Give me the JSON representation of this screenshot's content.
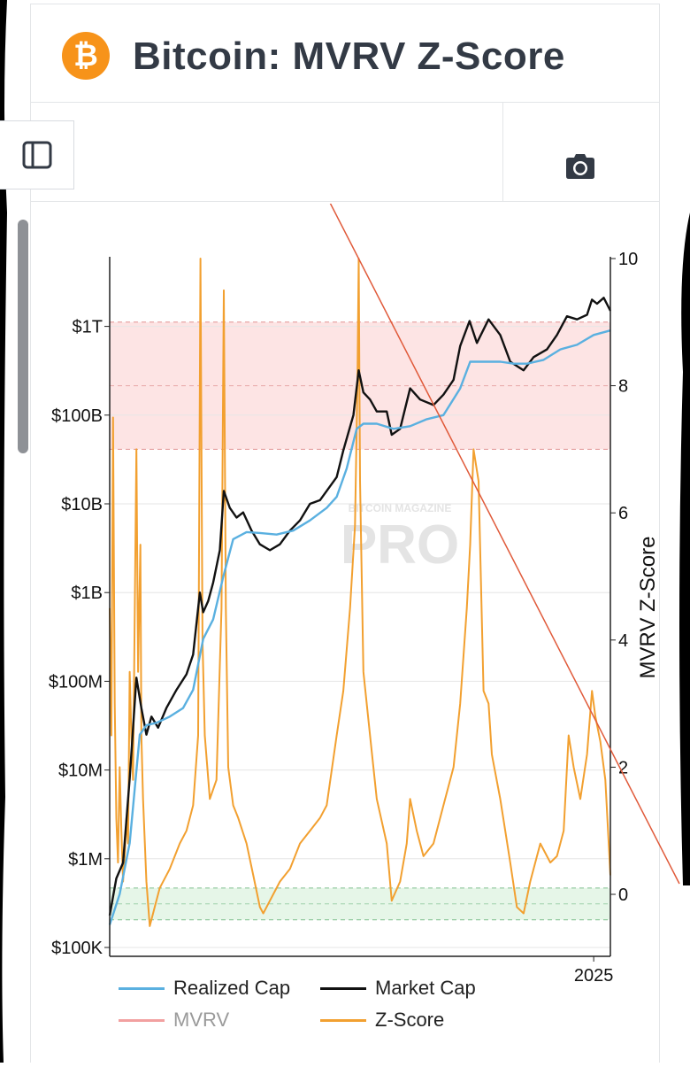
{
  "header": {
    "title": "Bitcoin: MVRV Z-Score",
    "logo_glyph": "₿"
  },
  "toolbar": {
    "sidebar_icon": "sidebar-panel-icon",
    "camera_icon": "camera-icon"
  },
  "watermark": {
    "small": "BITCOIN MAGAZINE",
    "big": "PRO"
  },
  "colors": {
    "realized_cap": "#5ab0e0",
    "market_cap": "#111111",
    "mvrv": "#f2a0a0",
    "z_score": "#f2a030",
    "trend_line": "#e05a3a",
    "upper_band": "#fde4e4",
    "lower_band": "#e6f6e8",
    "brand_orange": "#f7931a"
  },
  "legend": [
    {
      "label": "Realized Cap",
      "color": "#5ab0e0",
      "active": true
    },
    {
      "label": "Market Cap",
      "color": "#111111",
      "active": true
    },
    {
      "label": "MVRV",
      "color": "#f2a0a0",
      "active": false
    },
    {
      "label": "Z-Score",
      "color": "#f2a030",
      "active": true
    }
  ],
  "chart_data": {
    "type": "line",
    "title": "Bitcoin: MVRV Z-Score",
    "y_left": {
      "scale": "log",
      "ticks": [
        100000,
        1000000,
        10000000,
        100000000,
        1000000000,
        10000000000,
        100000000000,
        1000000000000
      ],
      "tick_labels": [
        "$100K",
        "$1M",
        "$10M",
        "$100M",
        "$1B",
        "$10B",
        "$100B",
        "$1T"
      ],
      "range": [
        80000,
        8000000000000
      ]
    },
    "y_right": {
      "label": "MVRV Z-Score",
      "ticks": [
        0,
        2,
        4,
        6,
        8,
        10
      ],
      "tick_labels": [
        "0",
        "2",
        "4",
        "6",
        "8",
        "10"
      ],
      "range": [
        -1,
        10
      ]
    },
    "x_axis": {
      "tick_labels": [
        "2025"
      ],
      "range": [
        2010.5,
        2025.5
      ]
    },
    "bands": [
      {
        "axis": "right",
        "from": 7,
        "to": 9,
        "color": "#fde4e4"
      },
      {
        "axis": "right",
        "from": -0.4,
        "to": 0.1,
        "color": "#e6f6e8"
      }
    ],
    "series": [
      {
        "name": "Market Cap",
        "axis": "left",
        "color": "#111111",
        "x": [
          2010.5,
          2010.7,
          2010.9,
          2011.1,
          2011.3,
          2011.45,
          2011.6,
          2011.75,
          2011.95,
          2012.2,
          2012.5,
          2012.8,
          2013.0,
          2013.2,
          2013.3,
          2013.45,
          2013.6,
          2013.8,
          2013.92,
          2014.1,
          2014.3,
          2014.5,
          2014.75,
          2015.0,
          2015.3,
          2015.6,
          2015.9,
          2016.2,
          2016.5,
          2016.8,
          2017.0,
          2017.3,
          2017.5,
          2017.8,
          2017.96,
          2018.1,
          2018.3,
          2018.5,
          2018.8,
          2018.95,
          2019.2,
          2019.5,
          2019.8,
          2020.2,
          2020.5,
          2020.8,
          2021.0,
          2021.28,
          2021.5,
          2021.85,
          2022.2,
          2022.5,
          2022.9,
          2023.2,
          2023.6,
          2023.9,
          2024.2,
          2024.5,
          2024.8,
          2024.95,
          2025.1,
          2025.3,
          2025.5
        ],
        "y": [
          230000,
          600000,
          900000,
          8000000,
          110000000,
          50000000,
          25000000,
          40000000,
          30000000,
          50000000,
          80000000,
          120000000,
          200000000,
          1000000000,
          600000000,
          800000000,
          1300000000,
          3000000000,
          14000000000,
          9000000000,
          7000000000,
          8000000000,
          5000000000,
          3500000000,
          3000000000,
          3500000000,
          5000000000,
          6500000000,
          10000000000,
          11000000000,
          14000000000,
          20000000000,
          40000000000,
          100000000000,
          320000000000,
          180000000000,
          150000000000,
          110000000000,
          110000000000,
          60000000000,
          70000000000,
          200000000000,
          150000000000,
          130000000000,
          170000000000,
          250000000000,
          600000000000,
          1150000000000,
          650000000000,
          1200000000000,
          800000000000,
          400000000000,
          320000000000,
          450000000000,
          550000000000,
          800000000000,
          1300000000000,
          1200000000000,
          1350000000000,
          2000000000000,
          1800000000000,
          2100000000000,
          1500000000000
        ]
      },
      {
        "name": "Realized Cap",
        "axis": "left",
        "color": "#5ab0e0",
        "x": [
          2010.5,
          2010.8,
          2011.1,
          2011.4,
          2011.6,
          2011.9,
          2012.3,
          2012.7,
          2013.0,
          2013.3,
          2013.6,
          2013.9,
          2014.2,
          2014.6,
          2015.0,
          2015.5,
          2016.0,
          2016.5,
          2017.0,
          2017.3,
          2017.6,
          2017.9,
          2018.1,
          2018.5,
          2019.0,
          2019.5,
          2020.0,
          2020.5,
          2021.0,
          2021.3,
          2021.7,
          2022.2,
          2022.6,
          2023.0,
          2023.5,
          2024.0,
          2024.5,
          2025.0,
          2025.5
        ],
        "y": [
          180000,
          400000,
          1500000,
          25000000,
          32000000,
          34000000,
          40000000,
          50000000,
          80000000,
          300000000,
          500000000,
          1500000000,
          4000000000,
          4800000000,
          4700000000,
          4500000000,
          5000000000,
          6500000000,
          9000000000,
          12000000000,
          25000000000,
          70000000000,
          80000000000,
          80000000000,
          70000000000,
          75000000000,
          90000000000,
          100000000000,
          200000000000,
          400000000000,
          400000000000,
          400000000000,
          380000000000,
          380000000000,
          420000000000,
          550000000000,
          620000000000,
          800000000000,
          900000000000
        ]
      },
      {
        "name": "Z-Score",
        "axis": "right",
        "color": "#f2a030",
        "x": [
          2010.5,
          2010.55,
          2010.6,
          2010.65,
          2010.7,
          2010.75,
          2010.8,
          2010.85,
          2010.9,
          2010.95,
          2011.0,
          2011.05,
          2011.1,
          2011.15,
          2011.2,
          2011.3,
          2011.35,
          2011.42,
          2011.45,
          2011.5,
          2011.6,
          2011.7,
          2011.85,
          2012.0,
          2012.3,
          2012.6,
          2012.8,
          2013.0,
          2013.15,
          2013.22,
          2013.28,
          2013.35,
          2013.5,
          2013.7,
          2013.85,
          2013.92,
          2013.98,
          2014.05,
          2014.2,
          2014.35,
          2014.6,
          2014.8,
          2015.0,
          2015.1,
          2015.3,
          2015.6,
          2015.9,
          2016.2,
          2016.5,
          2016.8,
          2017.0,
          2017.3,
          2017.5,
          2017.7,
          2017.85,
          2017.92,
          2017.96,
          2018.0,
          2018.1,
          2018.3,
          2018.5,
          2018.8,
          2018.95,
          2019.2,
          2019.4,
          2019.5,
          2019.7,
          2019.9,
          2020.2,
          2020.5,
          2020.8,
          2021.0,
          2021.2,
          2021.3,
          2021.4,
          2021.55,
          2021.7,
          2021.85,
          2021.95,
          2022.2,
          2022.5,
          2022.7,
          2022.9,
          2023.1,
          2023.4,
          2023.7,
          2023.9,
          2024.1,
          2024.25,
          2024.4,
          2024.6,
          2024.8,
          2024.95,
          2025.05,
          2025.2,
          2025.35,
          2025.5
        ],
        "y": [
          4.5,
          2.5,
          7.5,
          3,
          1.2,
          0.5,
          2,
          1,
          0.2,
          0.6,
          1.2,
          0.8,
          3.5,
          2.5,
          1.8,
          7.0,
          3.5,
          5.5,
          2.5,
          1.5,
          0.2,
          -0.5,
          -0.2,
          0.1,
          0.4,
          0.8,
          1.0,
          1.4,
          2.5,
          10.0,
          4.0,
          2.5,
          1.5,
          1.8,
          4.5,
          9.5,
          4.5,
          2.0,
          1.4,
          1.2,
          0.8,
          0.3,
          -0.2,
          -0.3,
          -0.1,
          0.2,
          0.4,
          0.8,
          1.0,
          1.2,
          1.4,
          2.5,
          3.2,
          4.5,
          5.8,
          8.0,
          10.0,
          6.5,
          3.5,
          2.5,
          1.5,
          0.8,
          -0.1,
          0.2,
          0.8,
          1.5,
          1.0,
          0.6,
          0.8,
          1.4,
          2.0,
          3.0,
          4.5,
          5.5,
          7.0,
          6.5,
          3.2,
          3.0,
          2.2,
          1.5,
          0.5,
          -0.2,
          -0.3,
          0.2,
          0.8,
          0.5,
          0.6,
          1.0,
          2.5,
          2.0,
          1.5,
          2.2,
          3.2,
          2.8,
          2.4,
          1.8,
          0.3
        ]
      }
    ],
    "trend_line": {
      "x": [
        2017.5,
        2025.55
      ],
      "y": [
        10.3,
        0.2
      ]
    }
  }
}
